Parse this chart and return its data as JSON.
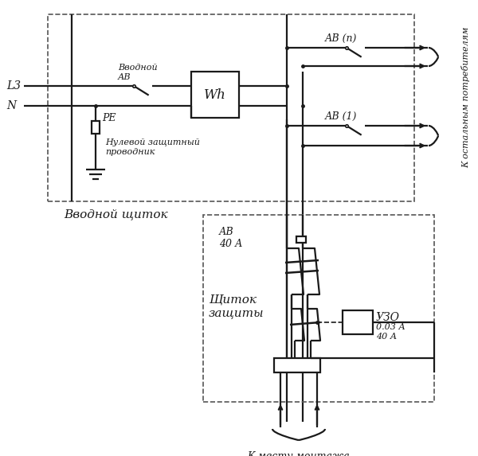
{
  "bg_color": "#ffffff",
  "lc": "#1a1a1a",
  "fig_w": 6.0,
  "fig_h": 5.73,
  "labels": {
    "L3": "L3",
    "N": "N",
    "PE": "PE",
    "Wh": "Wh",
    "vvodnoy_ab": "Вводной\nАВ",
    "nulevoy": "Нулевой защитный\nпроводник",
    "vvodnoy_shchitok": "Вводной щиток",
    "AB_n": "АВ (n)",
    "AB_1": "АВ (1)",
    "k_ostalnm": "К остальным потребителям",
    "AB_40": "АВ\n40 А",
    "UZO_title": "УЗО",
    "UZO_params": "0.03 А\n40 А",
    "shchitok_zashchity": "Щиток\nзащиты",
    "k_mestu": "К месту монтажа"
  }
}
